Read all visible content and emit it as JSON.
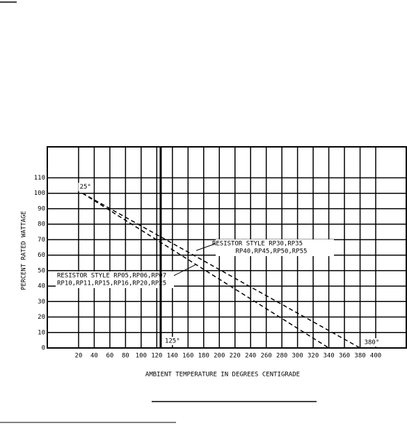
{
  "chart_data": {
    "type": "line",
    "x_label": "AMBIENT TEMPERATURE IN DEGREES CENTIGRADE",
    "y_label": "PERCENT RATED WATTAGE",
    "series": [
      {
        "name": "RESISTOR STYLE RP05,RP06,RP07",
        "name_line2": "RP10,RP11,RP15,RP16,RP20,RP25",
        "color": "#000000",
        "x": [
          25,
          340
        ],
        "values": [
          100,
          0
        ]
      },
      {
        "name": "RESISTOR STYLE RP30,RP35",
        "name_line2": "RP40,RP45,RP50,RP55",
        "color": "#000000",
        "x": [
          25,
          380
        ],
        "values": [
          100,
          0
        ]
      }
    ],
    "annotations": [
      {
        "text": "25°",
        "x": 25,
        "y": 100
      },
      {
        "text": "125°",
        "x": 125,
        "y": 0
      },
      {
        "text": "380°",
        "x": 380,
        "y": 0
      }
    ],
    "xlim": [
      -20,
      440
    ],
    "ylim": [
      0,
      130
    ],
    "xticks": [
      20,
      40,
      60,
      80,
      100,
      120,
      140,
      160,
      180,
      200,
      220,
      240,
      260,
      280,
      300,
      320,
      340,
      360,
      380,
      400
    ],
    "yticks": [
      0,
      10,
      20,
      30,
      40,
      50,
      60,
      70,
      80,
      90,
      100,
      110
    ],
    "grid": true
  }
}
